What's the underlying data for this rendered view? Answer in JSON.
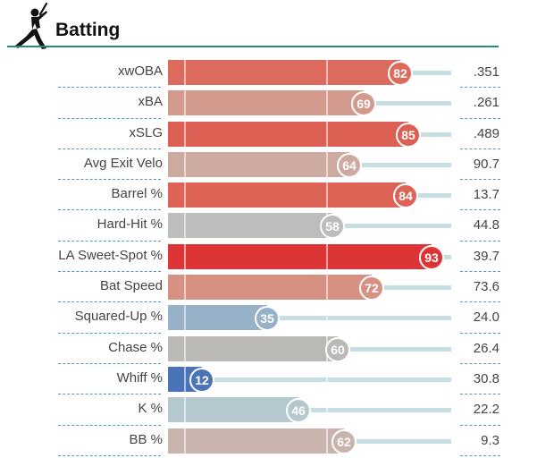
{
  "section": {
    "title": "Batting",
    "icon": "batter-icon"
  },
  "chart_data": {
    "type": "bar",
    "title": "Batting",
    "xlim": [
      0,
      100
    ],
    "gridlines": [
      0,
      50
    ],
    "categories": [
      "xwOBA",
      "xBA",
      "xSLG",
      "Avg Exit Velo",
      "Barrel %",
      "Hard-Hit %",
      "LA Sweet-Spot %",
      "Bat Speed",
      "Squared-Up %",
      "Chase %",
      "Whiff %",
      "K %",
      "BB %"
    ],
    "percentiles": [
      82,
      69,
      85,
      64,
      84,
      58,
      93,
      72,
      35,
      60,
      12,
      46,
      62
    ],
    "stat_values": [
      ".351",
      ".261",
      ".489",
      "90.7",
      "13.7",
      "44.8",
      "39.7",
      "73.6",
      "24.0",
      "26.4",
      "30.8",
      "22.2",
      "9.3"
    ],
    "colors": [
      "#dc6b5e",
      "#d2998d",
      "#dc5f53",
      "#cdaaa0",
      "#dc6355",
      "#bbbebb",
      "#dd3535",
      "#d69183",
      "#97b1c9",
      "#bbb9b6",
      "#4a73b8",
      "#b4c9ce",
      "#c9b4ad"
    ]
  },
  "scale": {
    "track_max": 100
  }
}
